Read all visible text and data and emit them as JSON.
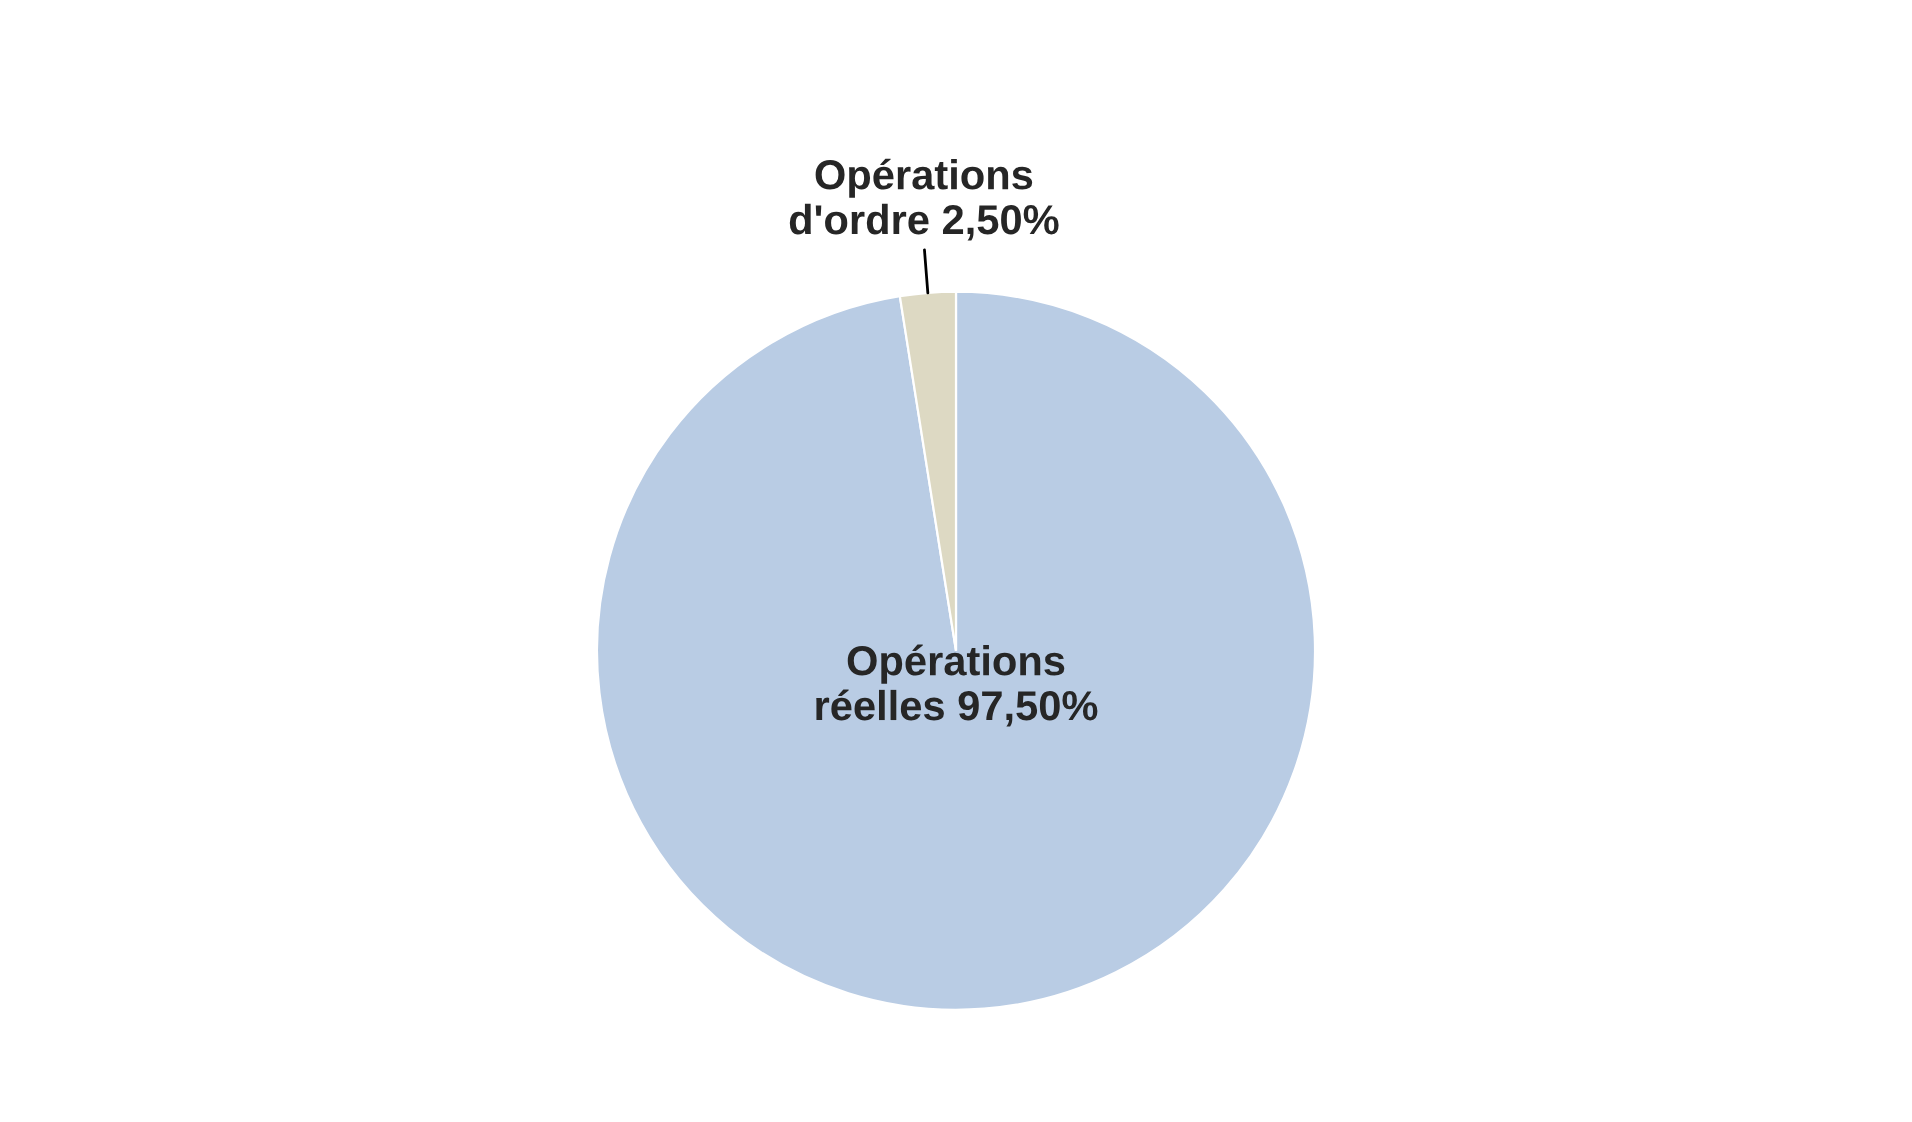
{
  "chart_data": {
    "type": "pie",
    "categories": [
      "Opérations réelles",
      "Opérations d'ordre"
    ],
    "values": [
      97.5,
      2.5
    ],
    "value_labels": [
      "97,50%",
      "2,50%"
    ],
    "colors": [
      "#b9cce4",
      "#ddd9c3"
    ],
    "legend": false
  }
}
